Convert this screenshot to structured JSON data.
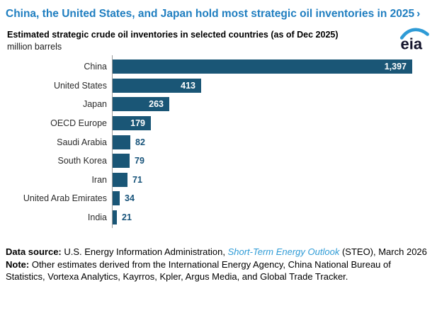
{
  "page": {
    "title": "China, the United States, and Japan hold most strategic oil inventories in 2025",
    "title_arrow": "›"
  },
  "chart": {
    "subtitle": "Estimated strategic crude oil inventories in selected countries (as of Dec 2025)",
    "unit": "million barrels"
  },
  "logo": {
    "text": "eia"
  },
  "chart_data": {
    "type": "bar",
    "orientation": "horizontal",
    "title": "Estimated strategic crude oil inventories in selected countries (as of Dec 2025)",
    "xlabel": "million barrels",
    "ylabel": "",
    "categories": [
      "China",
      "United States",
      "Japan",
      "OECD Europe",
      "Saudi Arabia",
      "South Korea",
      "Iran",
      "United Arab Emirates",
      "India"
    ],
    "values": [
      1397,
      413,
      263,
      179,
      82,
      79,
      71,
      34,
      21
    ],
    "value_labels": [
      "1,397",
      "413",
      "263",
      "179",
      "82",
      "79",
      "71",
      "34",
      "21"
    ],
    "xlim": [
      0,
      1400
    ],
    "grid": false,
    "legend": null,
    "bar_color": "#1A5676",
    "inside_label_color": "#ffffff",
    "outside_label_color": "#17537A"
  },
  "footer": {
    "data_source_label": "Data source:",
    "data_source_pre": " U.S. Energy Information Administration, ",
    "data_source_link": "Short-Term Energy Outlook",
    "data_source_post": " (STEO), March 2026",
    "note_label": "Note:",
    "note_text": " Other estimates derived from the International Energy Agency, China National Bureau of Statistics, Vortexa Analytics, Kayrros, Kpler, Argus Media, and Global Trade Tracker."
  },
  "colors": {
    "headline_blue": "#1F7EC0",
    "bar_blue": "#1A5676",
    "link_blue": "#2E9BD6",
    "axis_gray": "#9b9b9b"
  }
}
